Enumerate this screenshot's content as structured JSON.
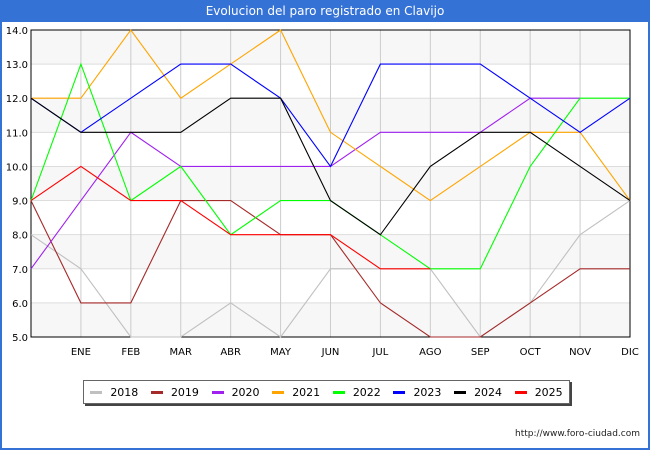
{
  "title": "Evolucion del paro registrado en Clavijo",
  "footer": "http://www.foro-ciudad.com",
  "chart_data": {
    "type": "line",
    "title": "Evolucion del paro registrado en Clavijo",
    "xlabel": "",
    "ylabel": "",
    "categories": [
      "",
      "ENE",
      "FEB",
      "MAR",
      "ABR",
      "MAY",
      "JUN",
      "JUL",
      "AGO",
      "SEP",
      "OCT",
      "NOV",
      "DIC"
    ],
    "ylim": [
      5.0,
      14.0
    ],
    "yticks": [
      "5.0",
      "6.0",
      "7.0",
      "8.0",
      "9.0",
      "10.0",
      "11.0",
      "12.0",
      "13.0",
      "14.0"
    ],
    "grid": true,
    "legend_position": "bottom",
    "series": [
      {
        "name": "2018",
        "color": "#c0c0c0",
        "values": [
          8,
          7,
          5,
          5,
          6,
          5,
          7,
          7,
          7,
          5,
          6,
          8,
          9
        ]
      },
      {
        "name": "2019",
        "color": "#a52a2a",
        "values": [
          9,
          6,
          6,
          9,
          9,
          8,
          8,
          6,
          5,
          5,
          6,
          7,
          7
        ]
      },
      {
        "name": "2020",
        "color": "#a020f0",
        "values": [
          7,
          9,
          11,
          10,
          10,
          10,
          10,
          11,
          11,
          11,
          12,
          12,
          null
        ]
      },
      {
        "name": "2021",
        "color": "#ffa500",
        "values": [
          12,
          12,
          14,
          12,
          13,
          14,
          11,
          10,
          9,
          10,
          11,
          11,
          9
        ]
      },
      {
        "name": "2022",
        "color": "#00ff00",
        "values": [
          9,
          13,
          9,
          10,
          8,
          9,
          9,
          8,
          7,
          7,
          10,
          12,
          12
        ]
      },
      {
        "name": "2023",
        "color": "#0000ff",
        "values": [
          12,
          11,
          12,
          13,
          13,
          12,
          10,
          13,
          13,
          13,
          12,
          11,
          12
        ]
      },
      {
        "name": "2024",
        "color": "#000000",
        "values": [
          12,
          11,
          11,
          11,
          12,
          12,
          9,
          8,
          10,
          11,
          11,
          10,
          9
        ]
      },
      {
        "name": "2025",
        "color": "#ff0000",
        "values": [
          9,
          10,
          9,
          9,
          8,
          8,
          8,
          7,
          7,
          null,
          null,
          null,
          null
        ]
      }
    ]
  }
}
